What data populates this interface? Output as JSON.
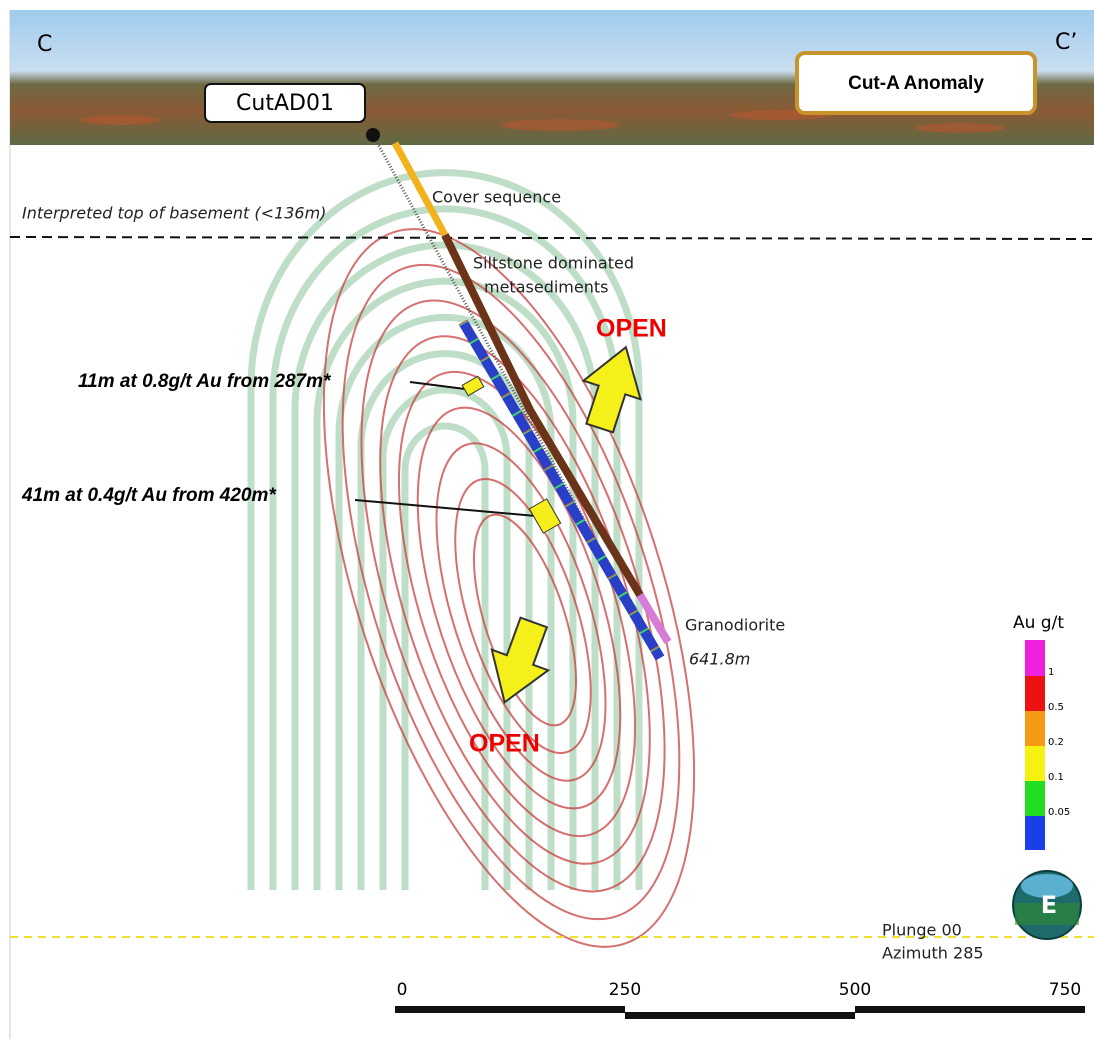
{
  "section": {
    "left_label": "C",
    "right_label": "C’"
  },
  "drillhole": {
    "name": "CutAD01",
    "end_depth": "641.8m"
  },
  "anomaly_label": "Cut-A Anomaly",
  "basement_label": "Interpreted top of basement (<136m)",
  "units": {
    "cover": "Cover sequence",
    "siltstone": [
      "Siltstone dominated",
      "metasediments"
    ],
    "granodiorite": "Granodiorite"
  },
  "open_labels": [
    "OPEN",
    "OPEN"
  ],
  "intercepts": [
    "11m at 0.8g/t Au from 287m*",
    "41m at 0.4g/t Au from 420m*"
  ],
  "legend": {
    "title": "Au g/t",
    "labels": [
      "1",
      "0.5",
      "0.2",
      "0.1",
      "0.05"
    ]
  },
  "orientation": {
    "plunge": "Plunge 00",
    "azimuth": "Azimuth 285",
    "compass": "E"
  },
  "scale_bar": [
    "0",
    "250",
    "500",
    "750"
  ]
}
